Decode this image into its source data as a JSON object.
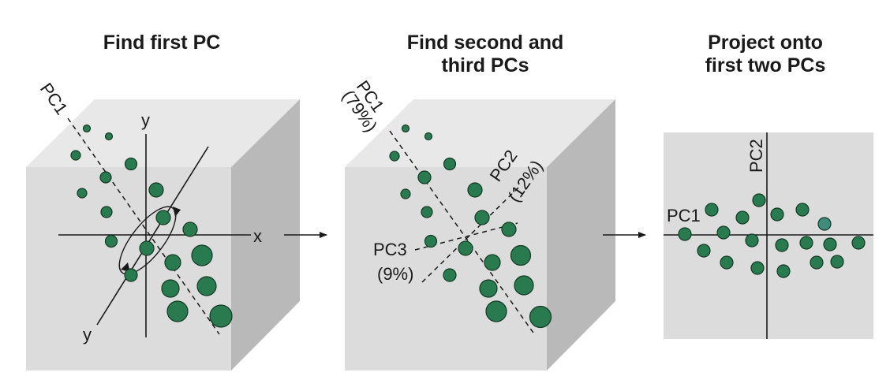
{
  "panels": [
    {
      "title_lines": [
        "Find first PC"
      ],
      "labels": {
        "pc1": "PC1",
        "x_axis": "x",
        "y_axis_top": "y",
        "y_axis_bottom": "y"
      }
    },
    {
      "title_lines": [
        "Find second and",
        "third PCs"
      ],
      "labels": {
        "pc1": "PC1",
        "pc1_percent": "(79%)",
        "pc2": "PC2",
        "pc2_percent": "(12%)",
        "pc3": "PC3",
        "pc3_percent": "(9%)"
      }
    },
    {
      "title_lines": [
        "Project onto",
        "first two PCs"
      ],
      "labels": {
        "pc1": "PC1",
        "pc2": "PC2"
      }
    }
  ],
  "colors": {
    "point": "#2a7a50",
    "point_stroke": "#123a24",
    "highlight_point": "#3f8c7c",
    "cube_front": "#dcdcdc",
    "cube_top": "#e8e8e8",
    "cube_side": "#b9b9b9"
  },
  "icons": [
    "arrow-right-icon",
    "arrow-right-icon",
    "rotation-arrow-icon"
  ]
}
